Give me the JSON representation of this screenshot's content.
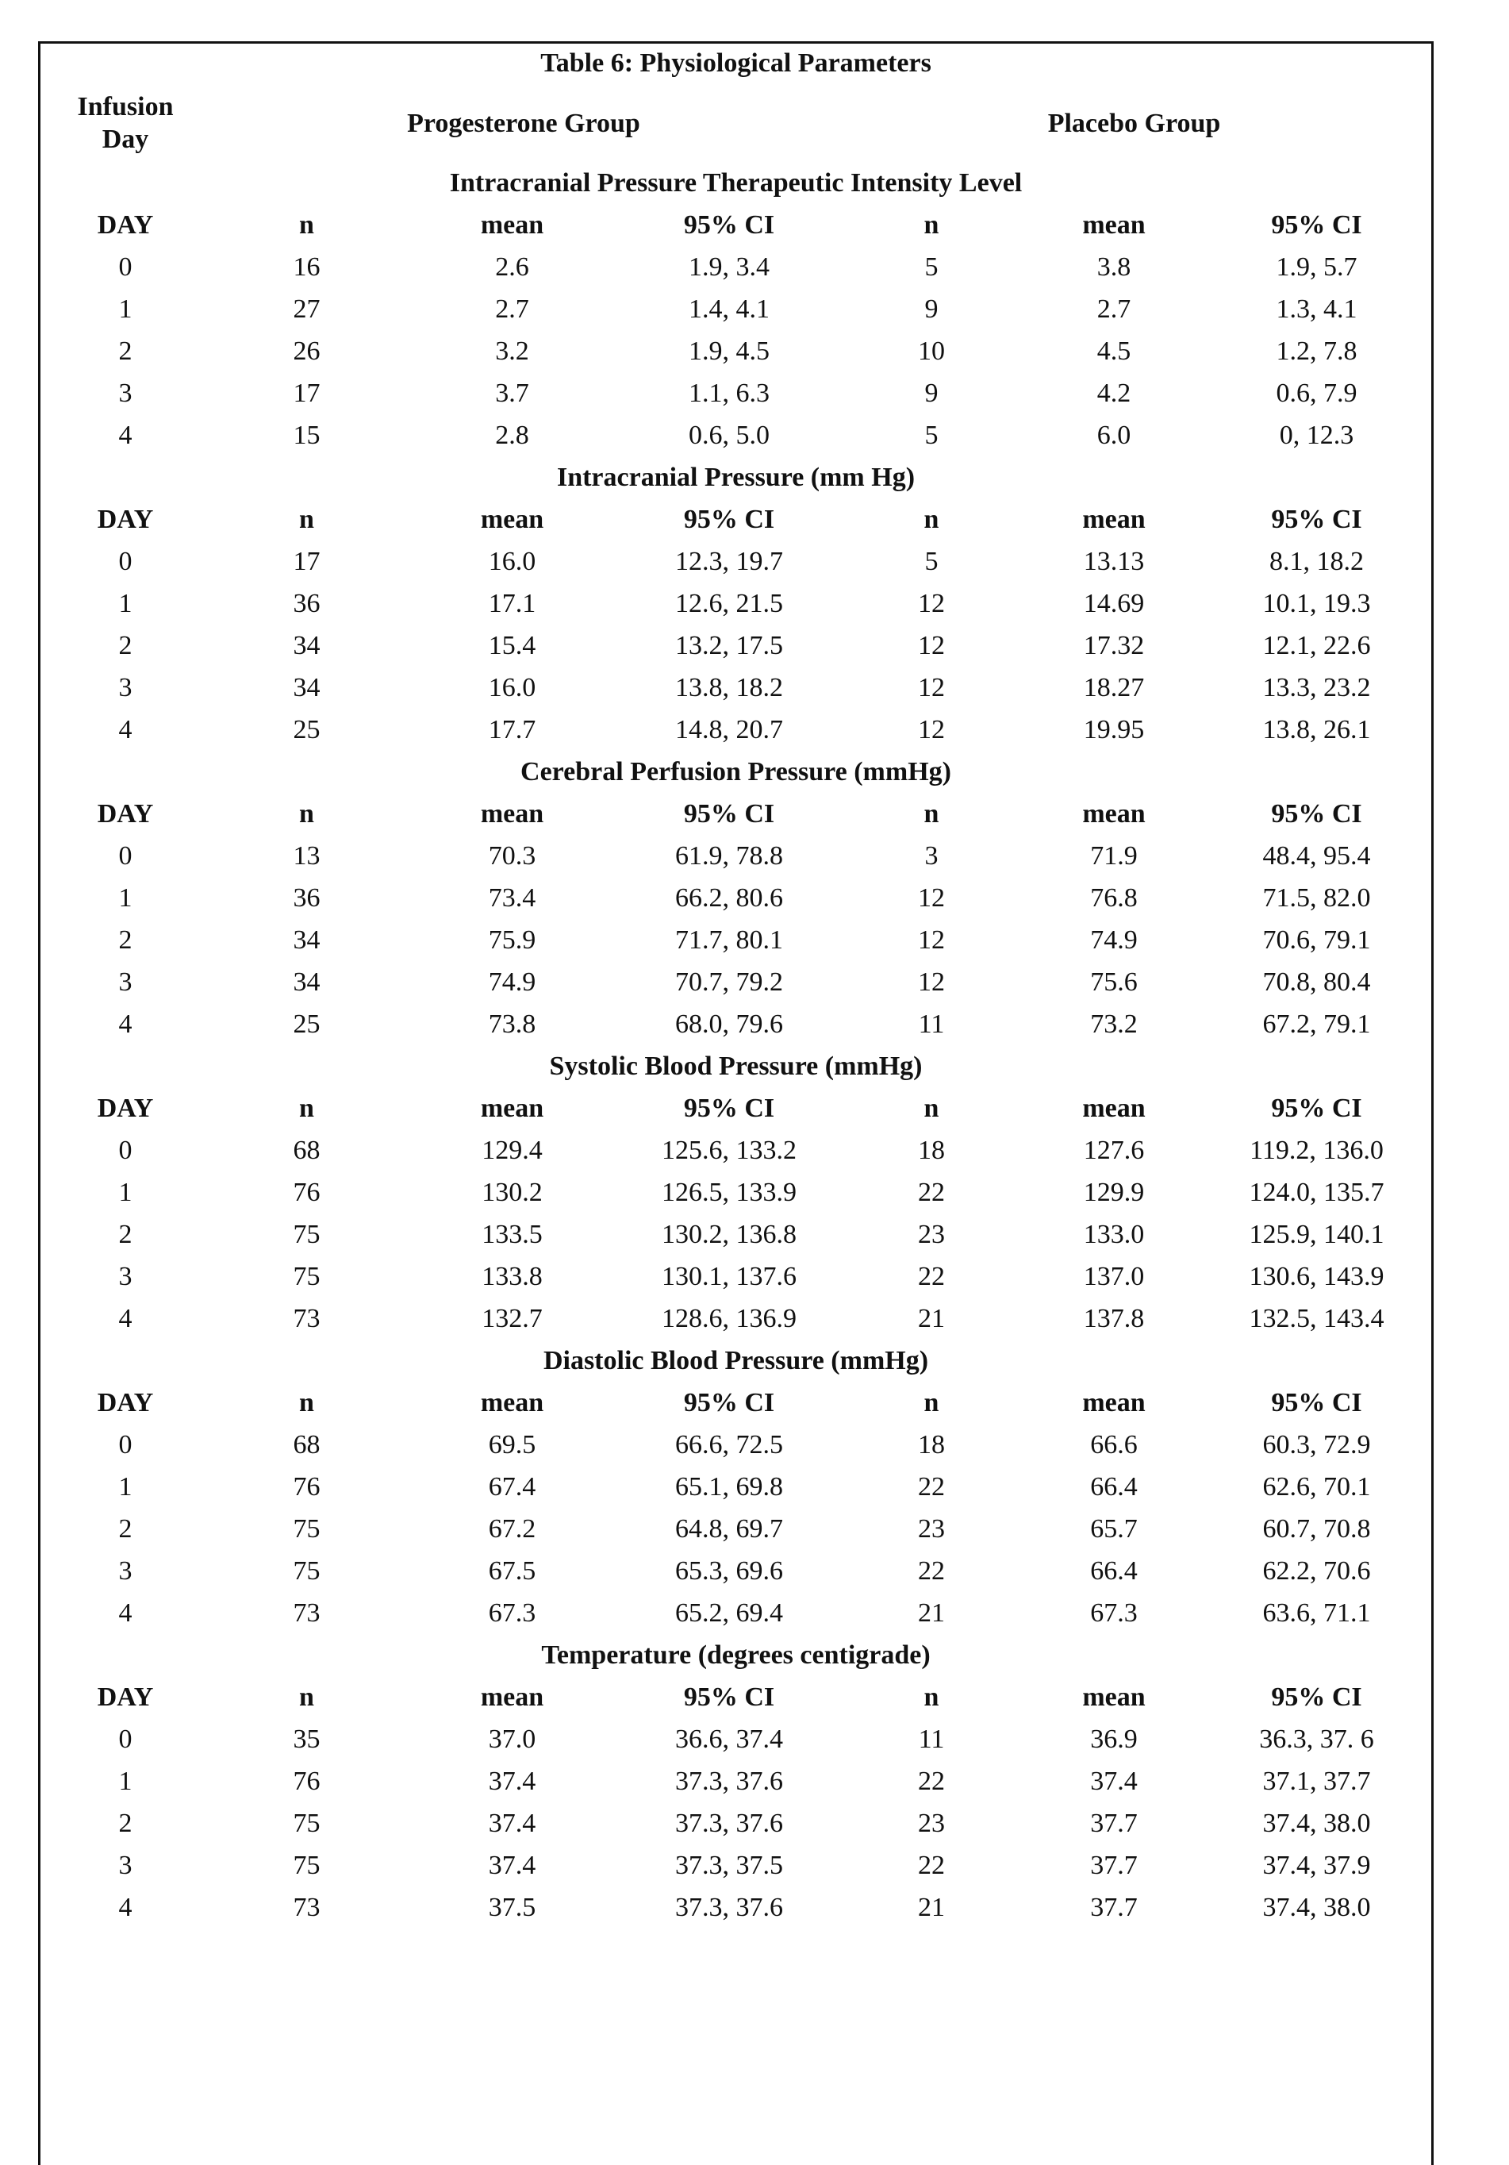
{
  "title": "Table 6: Physiological Parameters",
  "header": {
    "infusion_day": "Infusion Day",
    "progesterone_group": "Progesterone Group",
    "placebo_group": "Placebo Group"
  },
  "sections": [
    {
      "title": "Intracranial Pressure Therapeutic Intensity Level",
      "columns": [
        "DAY",
        "n",
        "mean",
        "95% CI",
        "n",
        "mean",
        "95% CI"
      ],
      "rows": [
        [
          "0",
          "16",
          "2.6",
          "1.9, 3.4",
          "5",
          "3.8",
          "1.9, 5.7"
        ],
        [
          "1",
          "27",
          "2.7",
          "1.4, 4.1",
          "9",
          "2.7",
          "1.3, 4.1"
        ],
        [
          "2",
          "26",
          "3.2",
          "1.9, 4.5",
          "10",
          "4.5",
          "1.2, 7.8"
        ],
        [
          "3",
          "17",
          "3.7",
          "1.1, 6.3",
          "9",
          "4.2",
          "0.6, 7.9"
        ],
        [
          "4",
          "15",
          "2.8",
          "0.6, 5.0",
          "5",
          "6.0",
          "0, 12.3"
        ]
      ]
    },
    {
      "title": "Intracranial Pressure (mm Hg)",
      "columns": [
        "DAY",
        "n",
        "mean",
        "95% CI",
        "n",
        "mean",
        "95% CI"
      ],
      "rows": [
        [
          "0",
          "17",
          "16.0",
          "12.3, 19.7",
          "5",
          "13.13",
          "8.1, 18.2"
        ],
        [
          "1",
          "36",
          "17.1",
          "12.6, 21.5",
          "12",
          "14.69",
          "10.1, 19.3"
        ],
        [
          "2",
          "34",
          "15.4",
          "13.2, 17.5",
          "12",
          "17.32",
          "12.1, 22.6"
        ],
        [
          "3",
          "34",
          "16.0",
          "13.8, 18.2",
          "12",
          "18.27",
          "13.3, 23.2"
        ],
        [
          "4",
          "25",
          "17.7",
          "14.8, 20.7",
          "12",
          "19.95",
          "13.8, 26.1"
        ]
      ]
    },
    {
      "title": "Cerebral Perfusion Pressure (mmHg)",
      "columns": [
        "DAY",
        "n",
        "mean",
        "95% CI",
        "n",
        "mean",
        "95% CI"
      ],
      "rows": [
        [
          "0",
          "13",
          "70.3",
          "61.9, 78.8",
          "3",
          "71.9",
          "48.4, 95.4"
        ],
        [
          "1",
          "36",
          "73.4",
          "66.2, 80.6",
          "12",
          "76.8",
          "71.5, 82.0"
        ],
        [
          "2",
          "34",
          "75.9",
          "71.7, 80.1",
          "12",
          "74.9",
          "70.6, 79.1"
        ],
        [
          "3",
          "34",
          "74.9",
          "70.7, 79.2",
          "12",
          "75.6",
          "70.8, 80.4"
        ],
        [
          "4",
          "25",
          "73.8",
          "68.0, 79.6",
          "11",
          "73.2",
          "67.2, 79.1"
        ]
      ]
    },
    {
      "title": "Systolic Blood Pressure (mmHg)",
      "columns": [
        "DAY",
        "n",
        "mean",
        "95% CI",
        "n",
        "mean",
        "95% CI"
      ],
      "rows": [
        [
          "0",
          "68",
          "129.4",
          "125.6, 133.2",
          "18",
          "127.6",
          "119.2, 136.0"
        ],
        [
          "1",
          "76",
          "130.2",
          "126.5, 133.9",
          "22",
          "129.9",
          "124.0, 135.7"
        ],
        [
          "2",
          "75",
          "133.5",
          "130.2, 136.8",
          "23",
          "133.0",
          "125.9, 140.1"
        ],
        [
          "3",
          "75",
          "133.8",
          "130.1, 137.6",
          "22",
          "137.0",
          "130.6, 143.9"
        ],
        [
          "4",
          "73",
          "132.7",
          "128.6, 136.9",
          "21",
          "137.8",
          "132.5, 143.4"
        ]
      ]
    },
    {
      "title": "Diastolic Blood Pressure (mmHg)",
      "columns": [
        "DAY",
        "n",
        "mean",
        "95% CI",
        "n",
        "mean",
        "95% CI"
      ],
      "rows": [
        [
          "0",
          "68",
          "69.5",
          "66.6, 72.5",
          "18",
          "66.6",
          "60.3, 72.9"
        ],
        [
          "1",
          "76",
          "67.4",
          "65.1, 69.8",
          "22",
          "66.4",
          "62.6, 70.1"
        ],
        [
          "2",
          "75",
          "67.2",
          "64.8, 69.7",
          "23",
          "65.7",
          "60.7, 70.8"
        ],
        [
          "3",
          "75",
          "67.5",
          "65.3, 69.6",
          "22",
          "66.4",
          "62.2, 70.6"
        ],
        [
          "4",
          "73",
          "67.3",
          "65.2, 69.4",
          "21",
          "67.3",
          "63.6, 71.1"
        ]
      ]
    },
    {
      "title": "Temperature (degrees centigrade)",
      "columns": [
        "DAY",
        "n",
        "mean",
        "95% CI",
        "n",
        "mean",
        "95% CI"
      ],
      "rows": [
        [
          "0",
          "35",
          "37.0",
          "36.6, 37.4",
          "11",
          "36.9",
          "36.3, 37. 6"
        ],
        [
          "1",
          "76",
          "37.4",
          "37.3, 37.6",
          "22",
          "37.4",
          "37.1, 37.7"
        ],
        [
          "2",
          "75",
          "37.4",
          "37.3, 37.6",
          "23",
          "37.7",
          "37.4, 38.0"
        ],
        [
          "3",
          "75",
          "37.4",
          "37.3, 37.5",
          "22",
          "37.7",
          "37.4, 37.9"
        ],
        [
          "4",
          "73",
          "37.5",
          "37.3, 37.6",
          "21",
          "37.7",
          "37.4, 38.0"
        ]
      ]
    }
  ]
}
